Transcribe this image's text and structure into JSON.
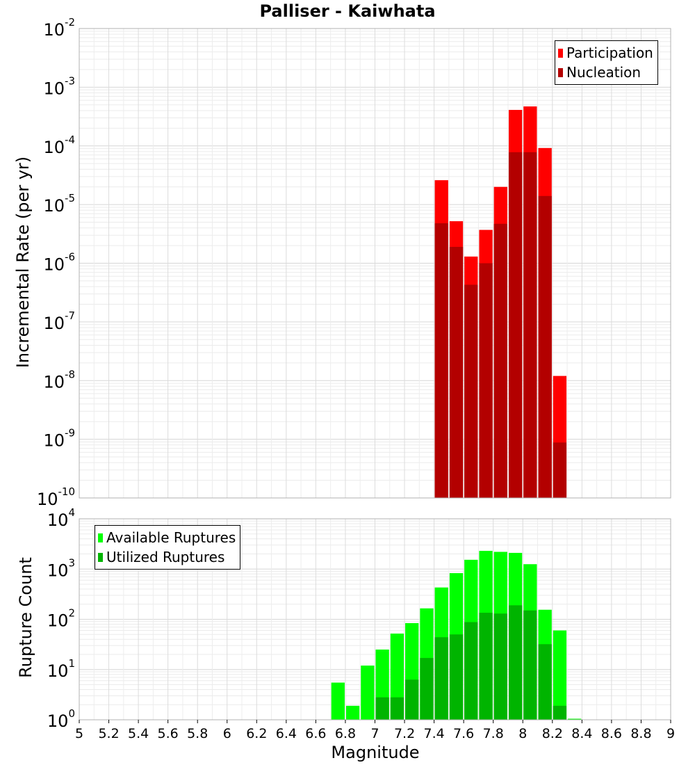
{
  "title": "Palliser - Kaiwhata",
  "chart_data": [
    {
      "type": "bar",
      "log_y": true,
      "ylabel": "Incremental Rate (per yr)",
      "xlim": [
        5,
        9
      ],
      "ylim_exp": [
        -10,
        -2
      ],
      "bin_width": 0.1,
      "legend_placement": "top-right",
      "grid": true,
      "bin_centers": [
        7.45,
        7.55,
        7.65,
        7.75,
        7.85,
        7.95,
        8.05,
        8.15,
        8.25
      ],
      "series": [
        {
          "name": "Participation",
          "color": "#ff0000",
          "values": [
            2.6e-05,
            5.2e-06,
            1.3e-06,
            3.7e-06,
            2e-05,
            0.00041,
            0.00047,
            9.2e-05,
            1.2e-08
          ]
        },
        {
          "name": "Nucleation",
          "color": "#b30000",
          "values": [
            4.8e-06,
            1.9e-06,
            4.3e-07,
            1e-06,
            4.7e-06,
            7.8e-05,
            7.8e-05,
            1.4e-05,
            8.8e-10
          ]
        }
      ]
    },
    {
      "type": "bar",
      "log_y": true,
      "ylabel": "Rupture Count",
      "xlabel": "Magnitude",
      "xlim": [
        5,
        9
      ],
      "ylim_exp": [
        0,
        4
      ],
      "bin_width": 0.1,
      "legend_placement": "top-left",
      "grid": true,
      "bin_centers": [
        6.75,
        6.85,
        6.95,
        7.05,
        7.15,
        7.25,
        7.35,
        7.45,
        7.55,
        7.65,
        7.75,
        7.85,
        7.95,
        8.05,
        8.15,
        8.25,
        8.35
      ],
      "series": [
        {
          "name": "Available Ruptures",
          "color": "#00ff00",
          "values": [
            5.5,
            1.9,
            12,
            25,
            52,
            84,
            165,
            430,
            830,
            1530,
            2300,
            2200,
            2100,
            1250,
            155,
            60,
            1.05
          ]
        },
        {
          "name": "Utilized Ruptures",
          "color": "#00b400",
          "values": [
            null,
            null,
            null,
            2.8,
            2.8,
            6.3,
            17,
            44,
            50,
            88,
            135,
            130,
            190,
            150,
            32,
            1.9,
            null
          ]
        }
      ]
    }
  ],
  "x_ticks": [
    "5",
    "5.2",
    "5.4",
    "5.6",
    "5.8",
    "6",
    "6.2",
    "6.4",
    "6.6",
    "6.8",
    "7",
    "7.2",
    "7.4",
    "7.6",
    "7.8",
    "8",
    "8.2",
    "8.4",
    "8.6",
    "8.8",
    "9"
  ],
  "top_ytick_labels": [
    {
      "base": "10",
      "exp": "-10"
    },
    {
      "base": "10",
      "exp": "-9"
    },
    {
      "base": "10",
      "exp": "-8"
    },
    {
      "base": "10",
      "exp": "-7"
    },
    {
      "base": "10",
      "exp": "-6"
    },
    {
      "base": "10",
      "exp": "-5"
    },
    {
      "base": "10",
      "exp": "-4"
    },
    {
      "base": "10",
      "exp": "-3"
    },
    {
      "base": "10",
      "exp": "-2"
    }
  ],
  "bottom_ytick_labels": [
    {
      "base": "10",
      "exp": "0"
    },
    {
      "base": "10",
      "exp": "1"
    },
    {
      "base": "10",
      "exp": "2"
    },
    {
      "base": "10",
      "exp": "3"
    },
    {
      "base": "10",
      "exp": "4"
    }
  ]
}
